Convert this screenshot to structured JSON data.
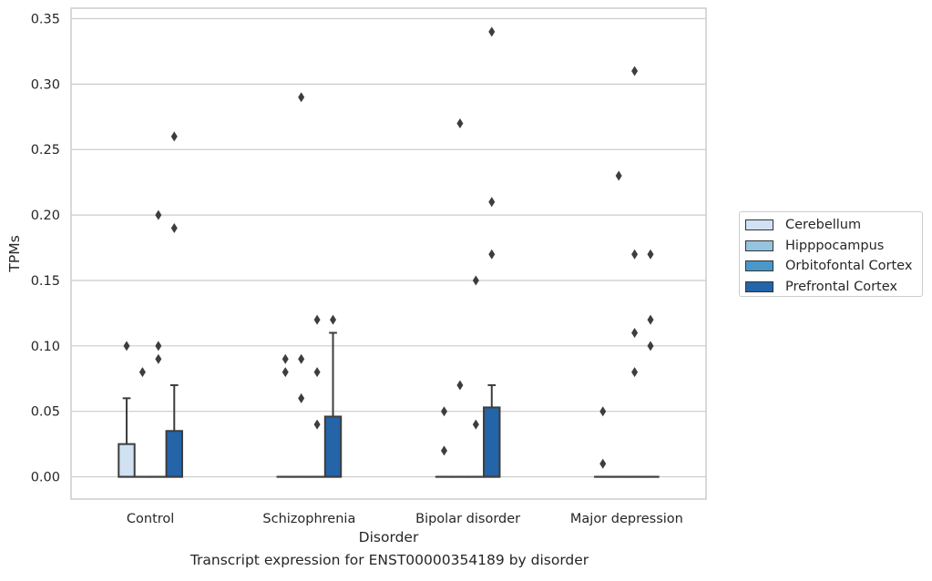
{
  "caption": "Transcript expression for ENST00000354189 by disorder",
  "chart_data": {
    "type": "box",
    "xlabel": "Disorder",
    "ylabel": "TPMs",
    "ylim": [
      -0.017,
      0.358
    ],
    "yticks": [
      0.0,
      0.05,
      0.1,
      0.15,
      0.2,
      0.25,
      0.3,
      0.35
    ],
    "ytick_labels": [
      "0.00",
      "0.05",
      "0.10",
      "0.15",
      "0.20",
      "0.25",
      "0.30",
      "0.35"
    ],
    "grid": "horizontal",
    "legend_position": "right",
    "categories": [
      "Control",
      "Schizophrenia",
      "Bipolar disorder",
      "Major depression"
    ],
    "series": [
      {
        "name": "Cerebellum",
        "color": "#d0e1f2",
        "boxes": [
          {
            "q1": 0.0,
            "median": 0.0,
            "q3": 0.025,
            "whisker_low": 0.0,
            "whisker_high": 0.06,
            "outliers": [
              0.1
            ]
          },
          {
            "q1": 0.0,
            "median": 0.0,
            "q3": 0.0,
            "whisker_low": 0.0,
            "whisker_high": 0.0,
            "outliers": [
              0.08,
              0.09
            ]
          },
          {
            "q1": 0.0,
            "median": 0.0,
            "q3": 0.0,
            "whisker_low": 0.0,
            "whisker_high": 0.0,
            "outliers": [
              0.02,
              0.05
            ]
          },
          {
            "q1": 0.0,
            "median": 0.0,
            "q3": 0.0,
            "whisker_low": 0.0,
            "whisker_high": 0.0,
            "outliers": [
              0.01,
              0.05
            ]
          }
        ]
      },
      {
        "name": "Hipppocampus",
        "color": "#94c4df",
        "boxes": [
          {
            "q1": 0.0,
            "median": 0.0,
            "q3": 0.0,
            "whisker_low": 0.0,
            "whisker_high": 0.0,
            "outliers": [
              0.08
            ]
          },
          {
            "q1": 0.0,
            "median": 0.0,
            "q3": 0.0,
            "whisker_low": 0.0,
            "whisker_high": 0.0,
            "outliers": [
              0.06,
              0.09,
              0.29
            ]
          },
          {
            "q1": 0.0,
            "median": 0.0,
            "q3": 0.0,
            "whisker_low": 0.0,
            "whisker_high": 0.0,
            "outliers": [
              0.07,
              0.27
            ]
          },
          {
            "q1": 0.0,
            "median": 0.0,
            "q3": 0.0,
            "whisker_low": 0.0,
            "whisker_high": 0.0,
            "outliers": [
              0.23
            ]
          }
        ]
      },
      {
        "name": "Orbitofontal Cortex",
        "color": "#4a98c9",
        "boxes": [
          {
            "q1": 0.0,
            "median": 0.0,
            "q3": 0.0,
            "whisker_low": 0.0,
            "whisker_high": 0.0,
            "outliers": [
              0.09,
              0.1,
              0.2
            ]
          },
          {
            "q1": 0.0,
            "median": 0.0,
            "q3": 0.0,
            "whisker_low": 0.0,
            "whisker_high": 0.0,
            "outliers": [
              0.04,
              0.08,
              0.12
            ]
          },
          {
            "q1": 0.0,
            "median": 0.0,
            "q3": 0.0,
            "whisker_low": 0.0,
            "whisker_high": 0.0,
            "outliers": [
              0.04,
              0.15
            ]
          },
          {
            "q1": 0.0,
            "median": 0.0,
            "q3": 0.0,
            "whisker_low": 0.0,
            "whisker_high": 0.0,
            "outliers": [
              0.08,
              0.11,
              0.17,
              0.31
            ]
          }
        ]
      },
      {
        "name": "Prefrontal Cortex",
        "color": "#2464a8",
        "boxes": [
          {
            "q1": 0.0,
            "median": 0.0,
            "q3": 0.035,
            "whisker_low": 0.0,
            "whisker_high": 0.07,
            "outliers": [
              0.19,
              0.26
            ]
          },
          {
            "q1": 0.0,
            "median": 0.0,
            "q3": 0.046,
            "whisker_low": 0.0,
            "whisker_high": 0.11,
            "outliers": [
              0.12
            ]
          },
          {
            "q1": 0.0,
            "median": 0.0,
            "q3": 0.053,
            "whisker_low": 0.0,
            "whisker_high": 0.07,
            "outliers": [
              0.17,
              0.21,
              0.34
            ]
          },
          {
            "q1": 0.0,
            "median": 0.0,
            "q3": 0.0,
            "whisker_low": 0.0,
            "whisker_high": 0.0,
            "outliers": [
              0.1,
              0.12,
              0.17
            ]
          }
        ]
      }
    ]
  }
}
